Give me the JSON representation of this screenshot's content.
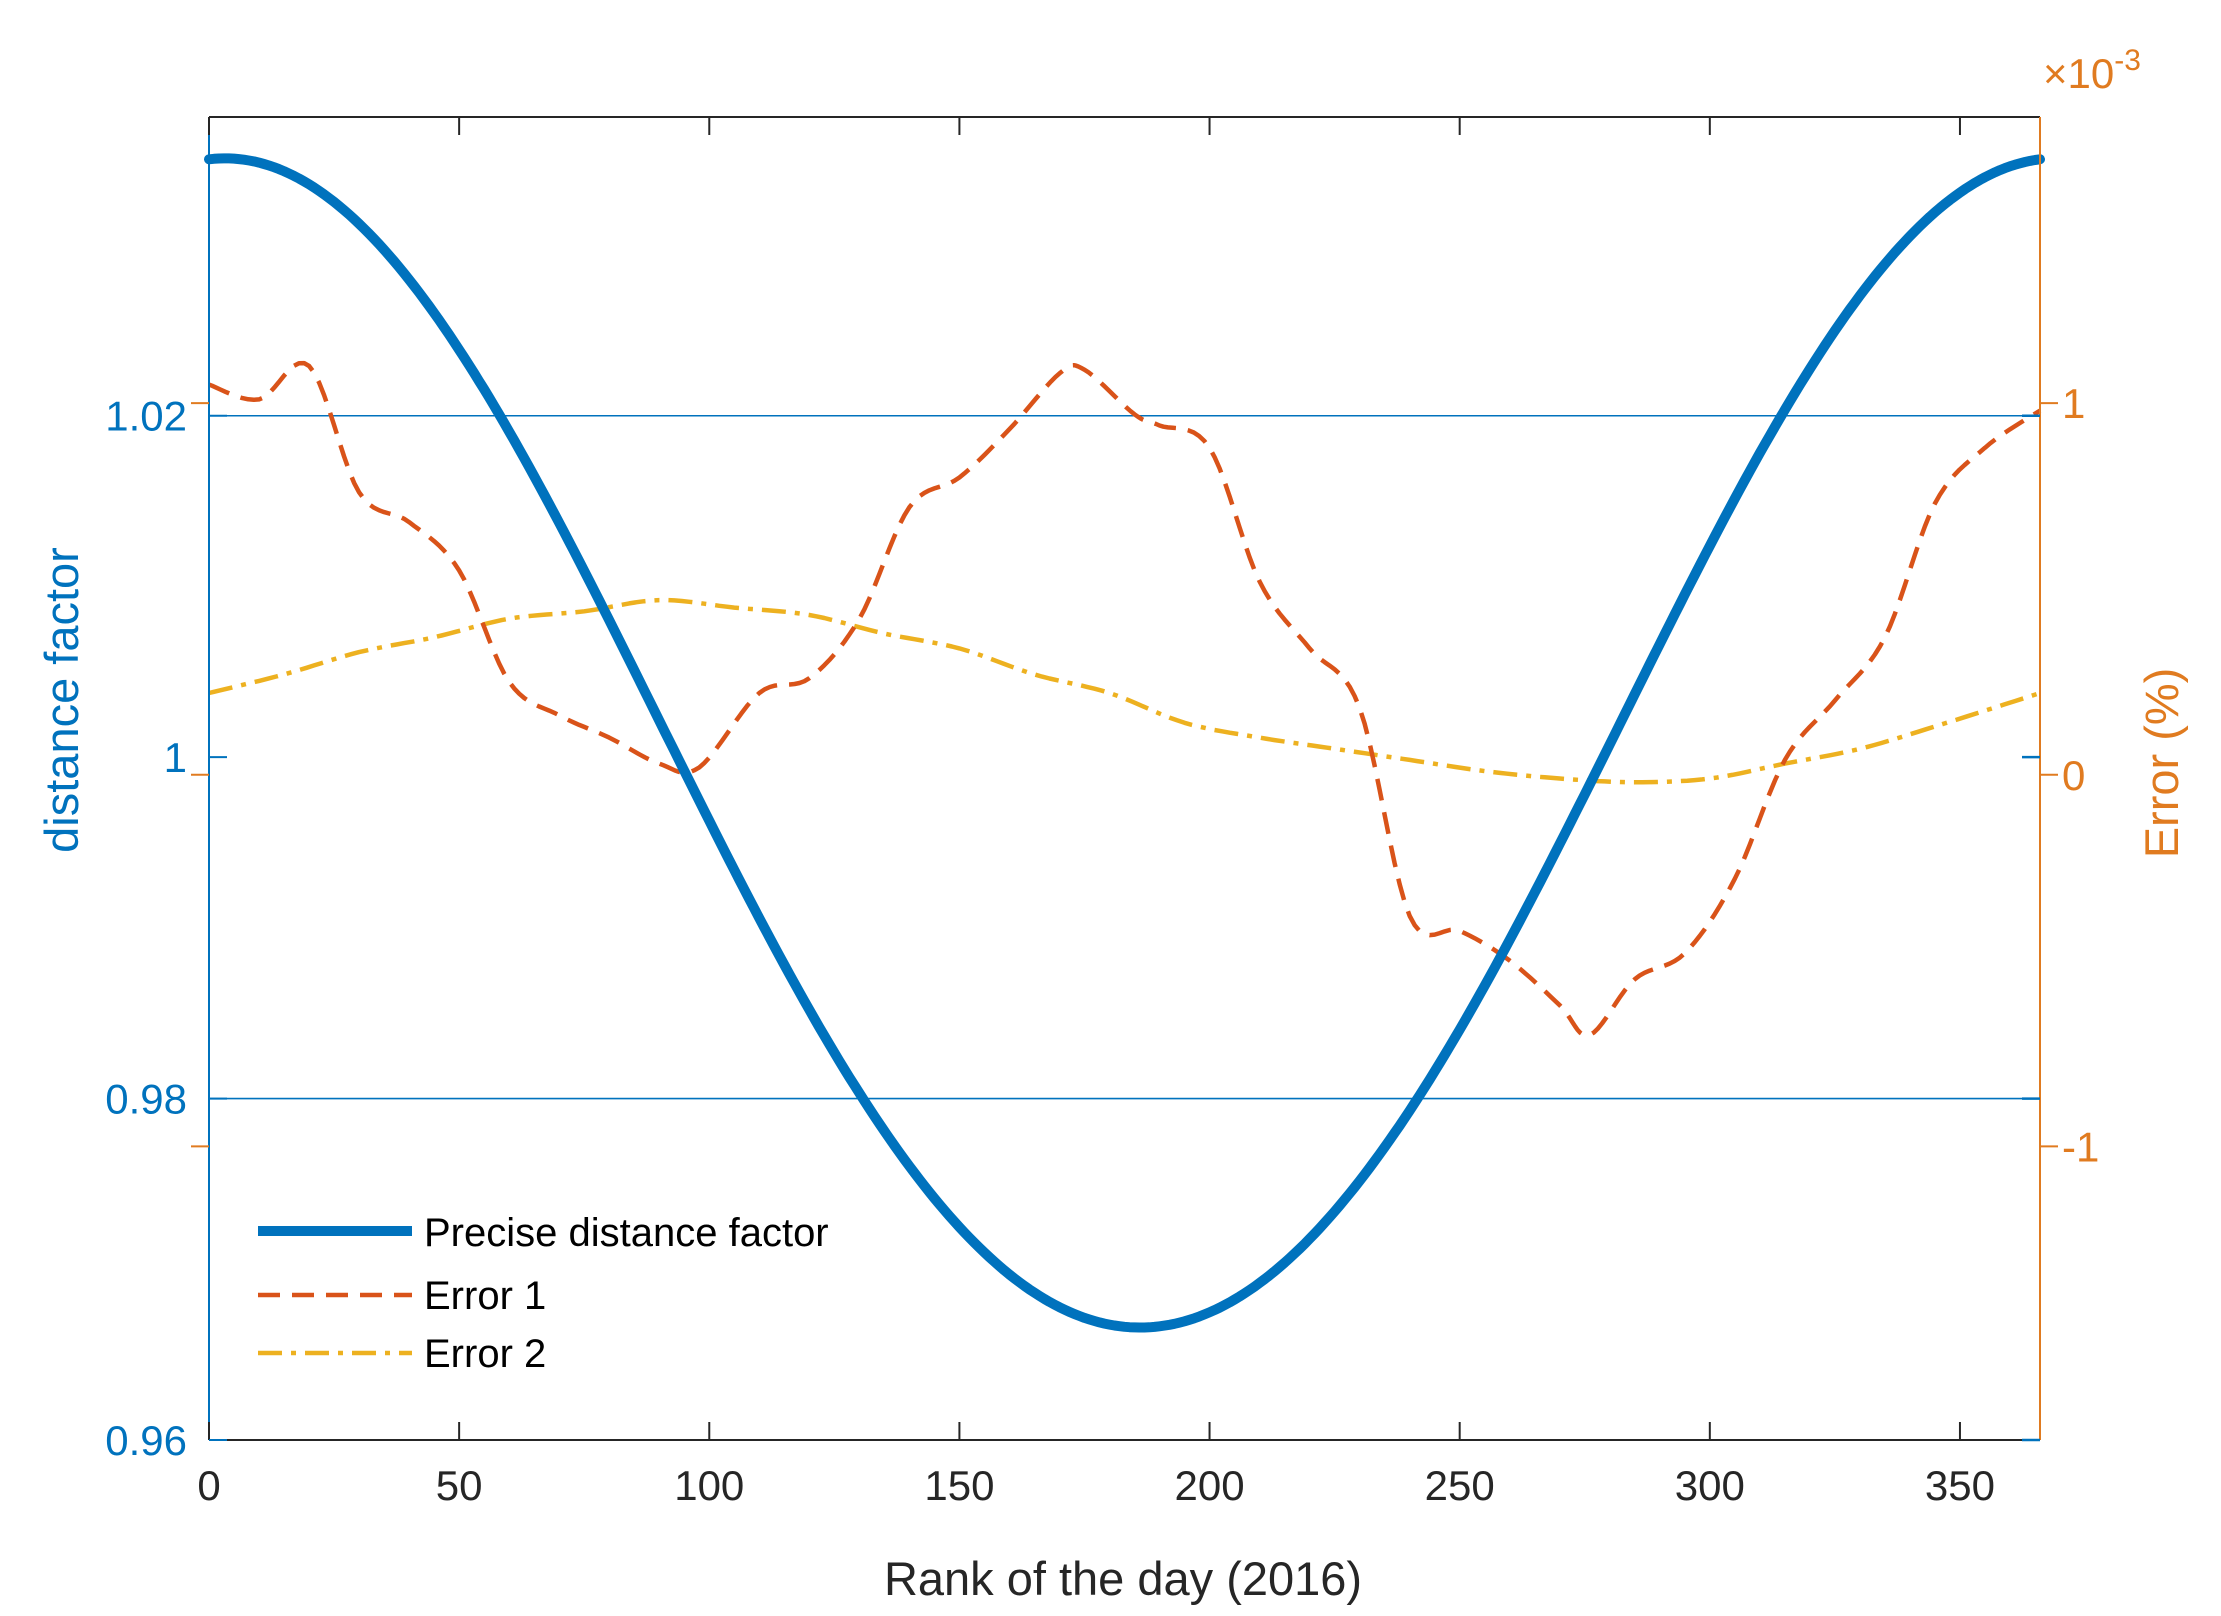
{
  "chart_data": {
    "type": "line",
    "title": "",
    "xlabel": "Rank of the day (2016)",
    "ylabel_left": "distance factor",
    "ylabel_right": "Error (%)",
    "right_axis_multiplier": "×10",
    "right_axis_exponent": "-3",
    "xlim": [
      0,
      366
    ],
    "ylim_left": [
      0.96,
      1.0375
    ],
    "ylim_right": [
      -1.79,
      1.77
    ],
    "x_ticks": [
      0,
      50,
      100,
      150,
      200,
      250,
      300,
      350
    ],
    "x_tick_labels": [
      "0",
      "50",
      "100",
      "150",
      "200",
      "250",
      "300",
      "350"
    ],
    "y_left_ticks": [
      0.96,
      0.98,
      1.0,
      1.02
    ],
    "y_left_tick_labels": [
      "0.96",
      "0.98",
      "1",
      "1.02"
    ],
    "y_right_ticks": [
      -1,
      0,
      1
    ],
    "y_right_tick_labels": [
      "-1",
      "0",
      "1"
    ],
    "grid_left_y": [
      0.98,
      1.02
    ],
    "legend_position": "bottom-left",
    "colors": {
      "left_axis": "#0072bd",
      "right_axis": "#d95319",
      "right_axis_label": "#e07b20",
      "series_precise": "#0072bd",
      "series_error1": "#d95319",
      "series_error2": "#edb120",
      "frame": "#262626"
    },
    "series": [
      {
        "name": "Precise distance factor",
        "axis": "left",
        "style": "solid",
        "function": "1.00011 + 0.034221*cos(2*pi*(x-1)/366) + 0.00128*sin(2*pi*(x-1)/366) + 0.000719*cos(4*pi*(x-1)/366) + 0.000077*sin(4*pi*(x-1)/366)",
        "x": [
          0,
          25,
          50,
          75,
          100,
          125,
          150,
          175,
          186,
          200,
          225,
          250,
          275,
          300,
          325,
          350,
          366
        ],
        "y": [
          1.0349,
          1.0302,
          1.0237,
          1.0125,
          0.9974,
          0.9826,
          0.9717,
          0.9678,
          0.9675,
          0.9689,
          0.9743,
          0.9858,
          1.0001,
          1.0131,
          1.0256,
          1.0325,
          1.0349
        ]
      },
      {
        "name": "Error 1",
        "axis": "right",
        "style": "dashed",
        "x": [
          0,
          10,
          20,
          30,
          40,
          50,
          60,
          70,
          80,
          90,
          98,
          110,
          120,
          130,
          140,
          150,
          160,
          170,
          175,
          185,
          190,
          200,
          210,
          220,
          230,
          240,
          250,
          260,
          270,
          276,
          285,
          295,
          305,
          315,
          325,
          335,
          345,
          355,
          366
        ],
        "y": [
          1.05,
          1.01,
          1.1,
          0.76,
          0.68,
          0.55,
          0.25,
          0.16,
          0.1,
          0.03,
          0.02,
          0.22,
          0.26,
          0.42,
          0.72,
          0.8,
          0.93,
          1.08,
          1.09,
          0.97,
          0.94,
          0.88,
          0.52,
          0.34,
          0.18,
          -0.38,
          -0.42,
          -0.5,
          -0.62,
          -0.7,
          -0.55,
          -0.48,
          -0.28,
          0.04,
          0.2,
          0.37,
          0.73,
          0.88,
          0.98
        ]
      },
      {
        "name": "Error 2",
        "axis": "right",
        "style": "dash-dot",
        "x": [
          0,
          15,
          30,
          45,
          60,
          75,
          90,
          105,
          120,
          135,
          150,
          165,
          180,
          195,
          210,
          225,
          240,
          255,
          270,
          285,
          300,
          315,
          330,
          345,
          366
        ],
        "y": [
          0.22,
          0.27,
          0.33,
          0.37,
          0.42,
          0.44,
          0.47,
          0.45,
          0.43,
          0.38,
          0.34,
          0.27,
          0.22,
          0.14,
          0.1,
          0.07,
          0.04,
          0.01,
          -0.01,
          -0.02,
          -0.01,
          0.03,
          0.07,
          0.13,
          0.22
        ]
      }
    ]
  }
}
